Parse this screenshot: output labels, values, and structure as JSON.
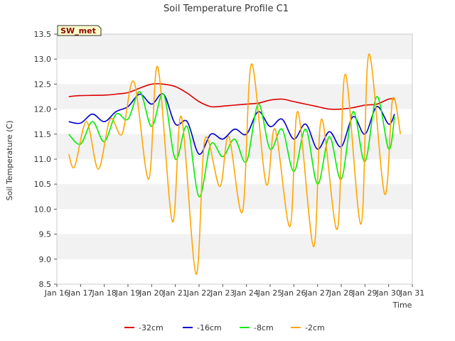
{
  "chart_data": {
    "type": "line",
    "title": "Soil Temperature Profile C1",
    "xlabel": "Time",
    "ylabel": "Soil Temperature (C)",
    "ylim": [
      8.5,
      13.5
    ],
    "xlim": [
      "2016-01-16",
      "2016-01-31"
    ],
    "y_ticks": [
      "8.5",
      "9.0",
      "9.5",
      "10.0",
      "10.5",
      "11.0",
      "11.5",
      "12.0",
      "12.5",
      "13.0",
      "13.5"
    ],
    "x_ticks": [
      "Jan 16",
      "Jan 17",
      "Jan 18",
      "Jan 19",
      "Jan 20",
      "Jan 21",
      "Jan 22",
      "Jan 23",
      "Jan 24",
      "Jan 25",
      "Jan 26",
      "Jan 27",
      "Jan 28",
      "Jan 29",
      "Jan 30",
      "Jan 31"
    ],
    "grid": "horizontal bands",
    "legend_position": "bottom",
    "badge": "SW_met",
    "series": [
      {
        "name": "-32cm",
        "color": "#dd0000",
        "x": [
          "2016-01-16 12:00",
          "2016-01-17 00:00",
          "2016-01-18 00:00",
          "2016-01-18 12:00",
          "2016-01-19 00:00",
          "2016-01-19 12:00",
          "2016-01-20 00:00",
          "2016-01-20 12:00",
          "2016-01-21 00:00",
          "2016-01-21 12:00",
          "2016-01-22 00:00",
          "2016-01-22 12:00",
          "2016-01-23 00:00",
          "2016-01-23 12:00",
          "2016-01-24 00:00",
          "2016-01-24 12:00",
          "2016-01-25 00:00",
          "2016-01-25 12:00",
          "2016-01-26 00:00",
          "2016-01-26 12:00",
          "2016-01-27 00:00",
          "2016-01-27 12:00",
          "2016-01-28 00:00",
          "2016-01-28 12:00",
          "2016-01-29 00:00",
          "2016-01-29 12:00",
          "2016-01-30 00:00",
          "2016-01-30 06:00"
        ],
        "y": [
          12.25,
          12.27,
          12.28,
          12.3,
          12.33,
          12.42,
          12.5,
          12.5,
          12.45,
          12.32,
          12.15,
          12.05,
          12.06,
          12.08,
          12.1,
          12.12,
          12.18,
          12.2,
          12.15,
          12.1,
          12.05,
          12.0,
          12.0,
          12.03,
          12.08,
          12.1,
          12.2,
          12.2
        ]
      },
      {
        "name": "-16cm",
        "color": "#0000cc",
        "x": [
          "2016-01-16 12:00",
          "2016-01-17 00:00",
          "2016-01-17 12:00",
          "2016-01-18 00:00",
          "2016-01-18 12:00",
          "2016-01-19 00:00",
          "2016-01-19 12:00",
          "2016-01-20 00:00",
          "2016-01-20 12:00",
          "2016-01-21 00:00",
          "2016-01-21 12:00",
          "2016-01-22 00:00",
          "2016-01-22 12:00",
          "2016-01-23 00:00",
          "2016-01-23 12:00",
          "2016-01-24 00:00",
          "2016-01-24 12:00",
          "2016-01-25 00:00",
          "2016-01-25 12:00",
          "2016-01-26 00:00",
          "2016-01-26 12:00",
          "2016-01-27 00:00",
          "2016-01-27 12:00",
          "2016-01-28 00:00",
          "2016-01-28 12:00",
          "2016-01-29 00:00",
          "2016-01-29 12:00",
          "2016-01-30 00:00",
          "2016-01-30 06:00"
        ],
        "y": [
          11.75,
          11.72,
          11.9,
          11.75,
          11.95,
          12.05,
          12.3,
          12.1,
          12.3,
          11.7,
          11.75,
          11.1,
          11.5,
          11.4,
          11.6,
          11.5,
          11.95,
          11.65,
          11.8,
          11.4,
          11.7,
          11.2,
          11.55,
          11.25,
          11.85,
          11.5,
          12.05,
          11.7,
          11.9
        ]
      },
      {
        "name": "-8cm",
        "color": "#00ee00",
        "x": [
          "2016-01-16 12:00",
          "2016-01-17 00:00",
          "2016-01-17 12:00",
          "2016-01-18 00:00",
          "2016-01-18 12:00",
          "2016-01-19 00:00",
          "2016-01-19 12:00",
          "2016-01-20 00:00",
          "2016-01-20 12:00",
          "2016-01-21 00:00",
          "2016-01-21 12:00",
          "2016-01-22 00:00",
          "2016-01-22 12:00",
          "2016-01-23 00:00",
          "2016-01-23 12:00",
          "2016-01-24 00:00",
          "2016-01-24 12:00",
          "2016-01-25 00:00",
          "2016-01-25 12:00",
          "2016-01-26 00:00",
          "2016-01-26 12:00",
          "2016-01-27 00:00",
          "2016-01-27 12:00",
          "2016-01-28 00:00",
          "2016-01-28 12:00",
          "2016-01-29 00:00",
          "2016-01-29 12:00",
          "2016-01-30 00:00",
          "2016-01-30 06:00"
        ],
        "y": [
          11.5,
          11.3,
          11.75,
          11.35,
          11.9,
          11.8,
          12.35,
          11.65,
          12.3,
          11.0,
          11.65,
          10.25,
          11.3,
          11.05,
          11.4,
          10.95,
          12.1,
          11.2,
          11.6,
          10.75,
          11.6,
          10.5,
          11.45,
          10.6,
          11.95,
          10.95,
          12.25,
          11.2,
          11.85
        ]
      },
      {
        "name": "-2cm",
        "color": "#ffa500",
        "x": [
          "2016-01-16 12:00",
          "2016-01-16 18:00",
          "2016-01-17 06:00",
          "2016-01-17 18:00",
          "2016-01-18 06:00",
          "2016-01-18 18:00",
          "2016-01-19 06:00",
          "2016-01-19 21:00",
          "2016-01-20 06:00",
          "2016-01-20 21:00",
          "2016-01-21 06:00",
          "2016-01-21 21:00",
          "2016-01-22 06:00",
          "2016-01-22 21:00",
          "2016-01-23 06:00",
          "2016-01-23 20:00",
          "2016-01-24 05:00",
          "2016-01-24 20:00",
          "2016-01-25 05:00",
          "2016-01-25 20:00",
          "2016-01-26 04:00",
          "2016-01-26 20:00",
          "2016-01-27 04:00",
          "2016-01-27 20:00",
          "2016-01-28 04:00",
          "2016-01-28 20:00",
          "2016-01-29 04:00",
          "2016-01-29 20:00",
          "2016-01-30 04:00",
          "2016-01-30 12:00"
        ],
        "y": [
          11.1,
          10.85,
          11.75,
          10.8,
          11.8,
          11.5,
          12.55,
          10.6,
          12.85,
          9.75,
          11.85,
          8.7,
          11.4,
          10.45,
          11.45,
          9.95,
          12.9,
          10.5,
          11.6,
          9.65,
          11.95,
          9.25,
          11.8,
          9.6,
          12.7,
          9.7,
          13.1,
          10.3,
          12.2,
          11.5
        ]
      }
    ]
  }
}
